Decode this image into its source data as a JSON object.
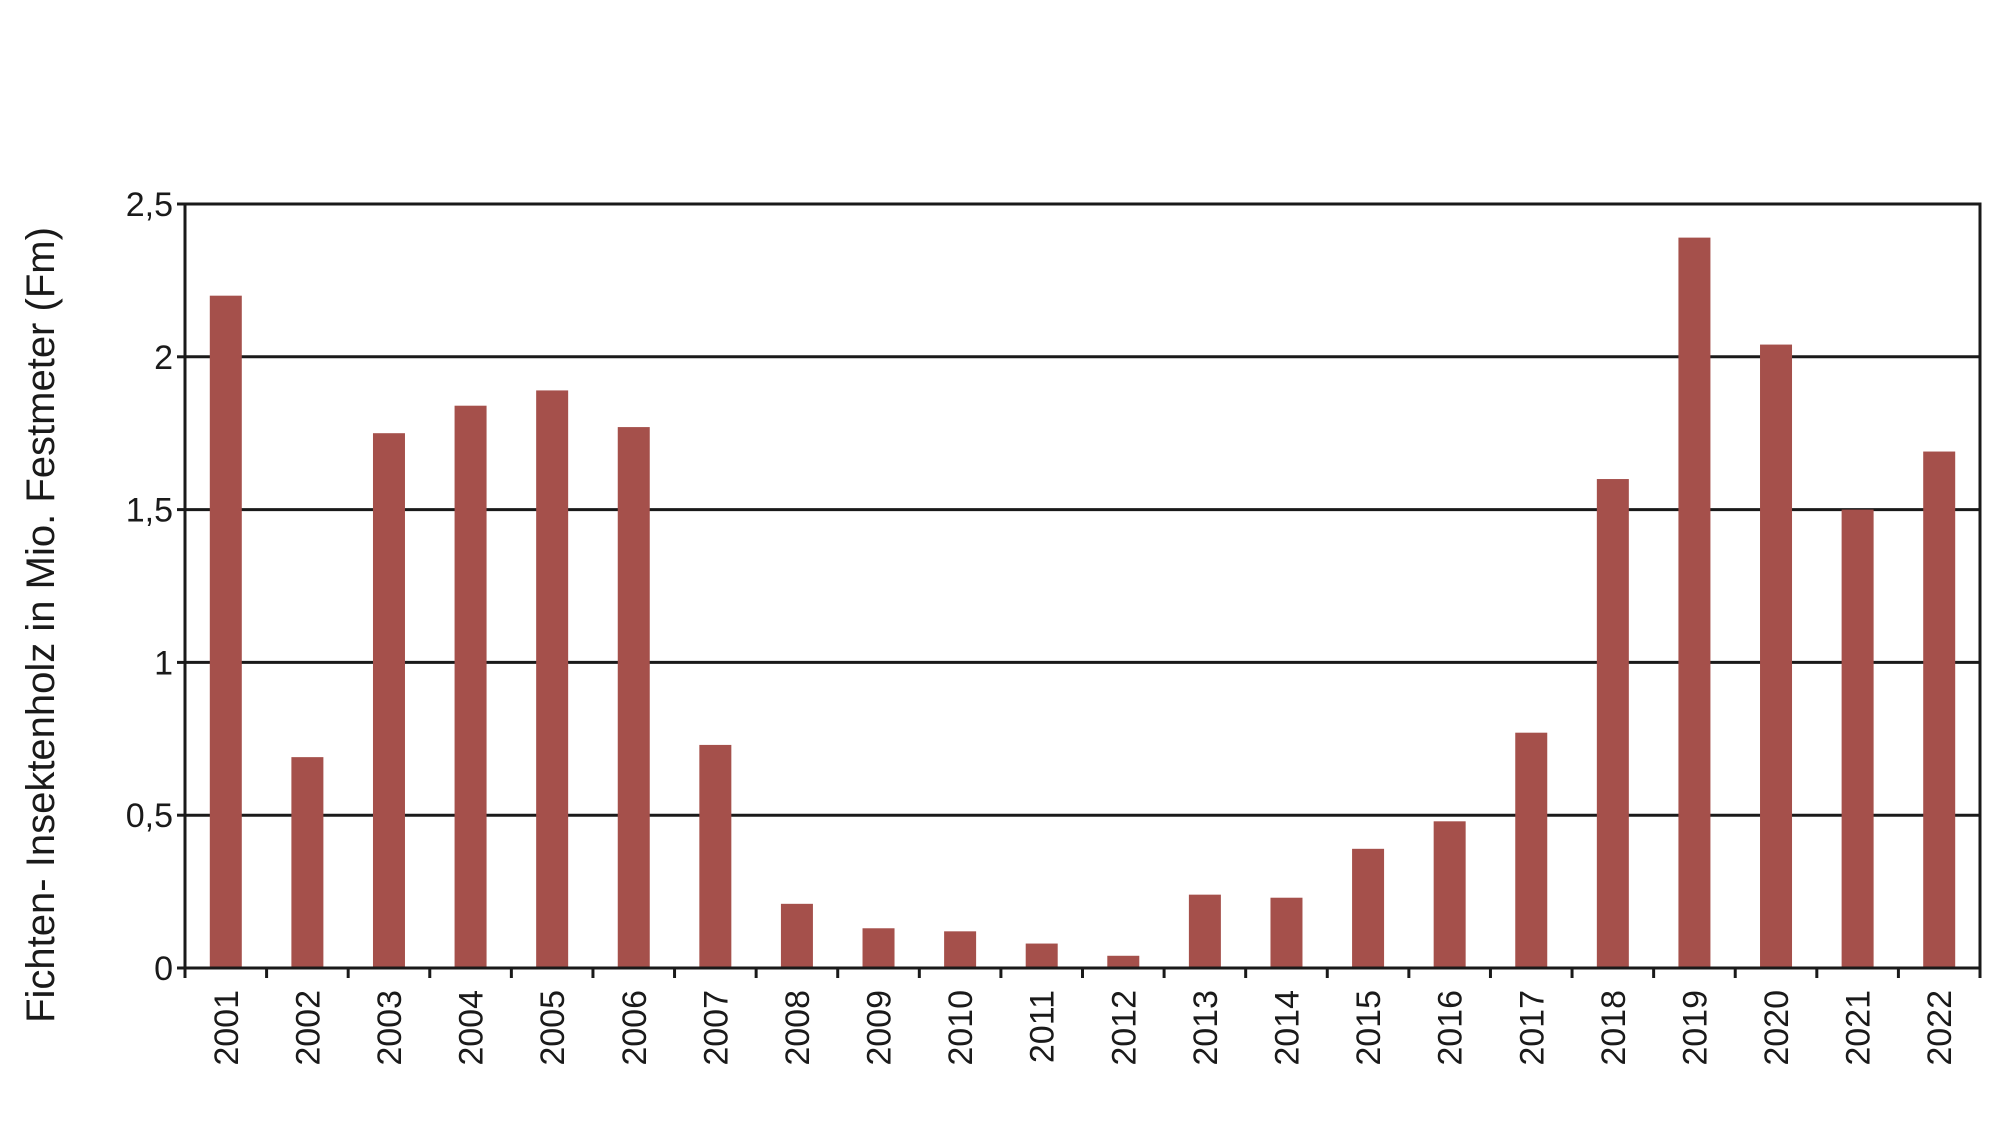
{
  "chart_data": {
    "type": "bar",
    "title": "",
    "xlabel": "",
    "ylabel": "Fichten- Insektenholz in Mio. Festmeter (Fm)",
    "categories": [
      "2001",
      "2002",
      "2003",
      "2004",
      "2005",
      "2006",
      "2007",
      "2008",
      "2009",
      "2010",
      "2011",
      "2012",
      "2013",
      "2014",
      "2015",
      "2016",
      "2017",
      "2018",
      "2019",
      "2020",
      "2021",
      "2022"
    ],
    "values": [
      2.2,
      0.69,
      1.75,
      1.84,
      1.89,
      1.77,
      0.73,
      0.21,
      0.13,
      0.12,
      0.08,
      0.04,
      0.24,
      0.23,
      0.39,
      0.48,
      0.77,
      1.6,
      2.39,
      2.04,
      1.5,
      1.69
    ],
    "ylim": [
      0,
      2.5
    ],
    "yticks": [
      0,
      0.5,
      1,
      1.5,
      2,
      2.5
    ],
    "ytick_labels": [
      "0",
      "0,5",
      "1",
      "1,5",
      "2",
      "2,5"
    ],
    "grid": true,
    "legend": "none",
    "bar_color": "#a5504b"
  }
}
